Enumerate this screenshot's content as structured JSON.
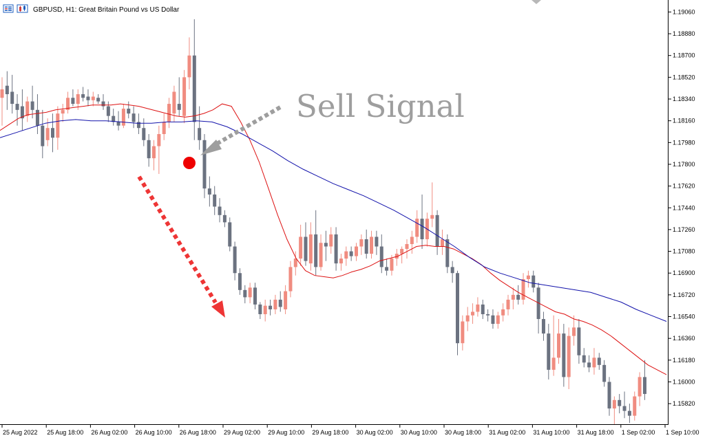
{
  "header": {
    "title": "GBPUSD, H1:  Great Britain Pound vs US Dollar",
    "icons": [
      "indicators-list-icon",
      "chart-type-icon"
    ]
  },
  "annotation": {
    "text": "Sell Signal",
    "text_color": "#9e9e9e",
    "marker_color": "#ee0000",
    "arrow_color": "#ee3535"
  },
  "colors": {
    "bull": "#f08c80",
    "bear": "#6b7280",
    "ma_fast": "#dd1111",
    "ma_slow": "#1111aa",
    "axis": "#000000"
  },
  "chart_data": {
    "type": "candlestick",
    "symbol": "GBPUSD",
    "timeframe": "H1",
    "ylim": [
      1.1565,
      1.19125
    ],
    "y_ticks": [
      "1.19060",
      "1.18880",
      "1.18700",
      "1.18520",
      "1.18340",
      "1.18160",
      "1.17980",
      "1.17800",
      "1.17620",
      "1.17440",
      "1.17260",
      "1.17080",
      "1.16900",
      "1.16720",
      "1.16540",
      "1.16360",
      "1.16180",
      "1.16000",
      "1.15820"
    ],
    "x_ticks": [
      "25 Aug 2022",
      "25 Aug 18:00",
      "26 Aug 02:00",
      "26 Aug 10:00",
      "26 Aug 18:00",
      "29 Aug 02:00",
      "29 Aug 10:00",
      "29 Aug 18:00",
      "30 Aug 02:00",
      "30 Aug 10:00",
      "30 Aug 18:00",
      "31 Aug 02:00",
      "31 Aug 10:00",
      "31 Aug 18:00",
      "1 Sep 02:00",
      "1 Sep 10:00"
    ],
    "candles": [
      {
        "o": 1.1835,
        "h": 1.1852,
        "l": 1.1812,
        "c": 1.1842
      },
      {
        "o": 1.1845,
        "h": 1.1857,
        "l": 1.1825,
        "c": 1.1838
      },
      {
        "o": 1.184,
        "h": 1.1854,
        "l": 1.1822,
        "c": 1.183
      },
      {
        "o": 1.183,
        "h": 1.1838,
        "l": 1.1812,
        "c": 1.1825
      },
      {
        "o": 1.1828,
        "h": 1.1842,
        "l": 1.1808,
        "c": 1.1818
      },
      {
        "o": 1.182,
        "h": 1.1836,
        "l": 1.1815,
        "c": 1.1832
      },
      {
        "o": 1.1832,
        "h": 1.1845,
        "l": 1.1818,
        "c": 1.1825
      },
      {
        "o": 1.1825,
        "h": 1.1838,
        "l": 1.1805,
        "c": 1.1812
      },
      {
        "o": 1.1812,
        "h": 1.1825,
        "l": 1.1785,
        "c": 1.1795
      },
      {
        "o": 1.18,
        "h": 1.1818,
        "l": 1.1795,
        "c": 1.181
      },
      {
        "o": 1.181,
        "h": 1.1822,
        "l": 1.179,
        "c": 1.1802
      },
      {
        "o": 1.1802,
        "h": 1.1828,
        "l": 1.1792,
        "c": 1.1822
      },
      {
        "o": 1.1822,
        "h": 1.183,
        "l": 1.1815,
        "c": 1.1825
      },
      {
        "o": 1.1825,
        "h": 1.184,
        "l": 1.1822,
        "c": 1.1835
      },
      {
        "o": 1.1835,
        "h": 1.1842,
        "l": 1.1828,
        "c": 1.183
      },
      {
        "o": 1.183,
        "h": 1.1842,
        "l": 1.1825,
        "c": 1.1838
      },
      {
        "o": 1.1838,
        "h": 1.1844,
        "l": 1.1832,
        "c": 1.1835
      },
      {
        "o": 1.1836,
        "h": 1.1842,
        "l": 1.1828,
        "c": 1.1833
      },
      {
        "o": 1.1833,
        "h": 1.184,
        "l": 1.1828,
        "c": 1.1836
      },
      {
        "o": 1.1835,
        "h": 1.1838,
        "l": 1.183,
        "c": 1.1832
      },
      {
        "o": 1.1832,
        "h": 1.1838,
        "l": 1.1825,
        "c": 1.1828
      },
      {
        "o": 1.1828,
        "h": 1.1832,
        "l": 1.1815,
        "c": 1.182
      },
      {
        "o": 1.182,
        "h": 1.1826,
        "l": 1.1812,
        "c": 1.1815
      },
      {
        "o": 1.1815,
        "h": 1.1824,
        "l": 1.1808,
        "c": 1.1812
      },
      {
        "o": 1.1812,
        "h": 1.183,
        "l": 1.181,
        "c": 1.1826
      },
      {
        "o": 1.1826,
        "h": 1.1832,
        "l": 1.1818,
        "c": 1.1822
      },
      {
        "o": 1.1822,
        "h": 1.1828,
        "l": 1.181,
        "c": 1.1815
      },
      {
        "o": 1.1815,
        "h": 1.1822,
        "l": 1.1805,
        "c": 1.181
      },
      {
        "o": 1.181,
        "h": 1.1818,
        "l": 1.1795,
        "c": 1.18
      },
      {
        "o": 1.18,
        "h": 1.1805,
        "l": 1.1778,
        "c": 1.1785
      },
      {
        "o": 1.1785,
        "h": 1.18,
        "l": 1.1775,
        "c": 1.1795
      },
      {
        "o": 1.1795,
        "h": 1.1812,
        "l": 1.1772,
        "c": 1.1805
      },
      {
        "o": 1.1805,
        "h": 1.1822,
        "l": 1.18,
        "c": 1.1815
      },
      {
        "o": 1.1815,
        "h": 1.1835,
        "l": 1.181,
        "c": 1.183
      },
      {
        "o": 1.1822,
        "h": 1.1845,
        "l": 1.1815,
        "c": 1.184
      },
      {
        "o": 1.183,
        "h": 1.1852,
        "l": 1.182,
        "c": 1.1825
      },
      {
        "o": 1.182,
        "h": 1.1858,
        "l": 1.1814,
        "c": 1.1852
      },
      {
        "o": 1.1852,
        "h": 1.1885,
        "l": 1.1842,
        "c": 1.187
      },
      {
        "o": 1.187,
        "h": 1.19,
        "l": 1.18,
        "c": 1.1815
      },
      {
        "o": 1.181,
        "h": 1.1828,
        "l": 1.1792,
        "c": 1.18
      },
      {
        "o": 1.18,
        "h": 1.1805,
        "l": 1.1752,
        "c": 1.176
      },
      {
        "o": 1.176,
        "h": 1.177,
        "l": 1.1745,
        "c": 1.1755
      },
      {
        "o": 1.1755,
        "h": 1.1762,
        "l": 1.1738,
        "c": 1.1745
      },
      {
        "o": 1.1745,
        "h": 1.1752,
        "l": 1.1732,
        "c": 1.1738
      },
      {
        "o": 1.1738,
        "h": 1.1742,
        "l": 1.1728,
        "c": 1.1732
      },
      {
        "o": 1.1732,
        "h": 1.1736,
        "l": 1.1708,
        "c": 1.1712
      },
      {
        "o": 1.1712,
        "h": 1.1716,
        "l": 1.1684,
        "c": 1.169
      },
      {
        "o": 1.169,
        "h": 1.1694,
        "l": 1.1672,
        "c": 1.1676
      },
      {
        "o": 1.1676,
        "h": 1.168,
        "l": 1.1665,
        "c": 1.167
      },
      {
        "o": 1.167,
        "h": 1.1682,
        "l": 1.1665,
        "c": 1.1678
      },
      {
        "o": 1.1678,
        "h": 1.1682,
        "l": 1.166,
        "c": 1.1664
      },
      {
        "o": 1.1664,
        "h": 1.1666,
        "l": 1.1652,
        "c": 1.1656
      },
      {
        "o": 1.1656,
        "h": 1.1668,
        "l": 1.165,
        "c": 1.1663
      },
      {
        "o": 1.1663,
        "h": 1.1668,
        "l": 1.1655,
        "c": 1.166
      },
      {
        "o": 1.166,
        "h": 1.1672,
        "l": 1.1656,
        "c": 1.1668
      },
      {
        "o": 1.1668,
        "h": 1.1675,
        "l": 1.1658,
        "c": 1.1662
      },
      {
        "o": 1.166,
        "h": 1.168,
        "l": 1.1656,
        "c": 1.1675
      },
      {
        "o": 1.1675,
        "h": 1.17,
        "l": 1.167,
        "c": 1.1695
      },
      {
        "o": 1.1695,
        "h": 1.1708,
        "l": 1.1688,
        "c": 1.1702
      },
      {
        "o": 1.1702,
        "h": 1.173,
        "l": 1.1696,
        "c": 1.172
      },
      {
        "o": 1.172,
        "h": 1.1732,
        "l": 1.1696,
        "c": 1.17
      },
      {
        "o": 1.1698,
        "h": 1.1732,
        "l": 1.1692,
        "c": 1.1722
      },
      {
        "o": 1.1722,
        "h": 1.1742,
        "l": 1.1688,
        "c": 1.1695
      },
      {
        "o": 1.1695,
        "h": 1.1722,
        "l": 1.1692,
        "c": 1.1715
      },
      {
        "o": 1.1715,
        "h": 1.1725,
        "l": 1.17,
        "c": 1.1712
      },
      {
        "o": 1.1712,
        "h": 1.1728,
        "l": 1.1706,
        "c": 1.1722
      },
      {
        "o": 1.1722,
        "h": 1.1728,
        "l": 1.1692,
        "c": 1.1698
      },
      {
        "o": 1.1698,
        "h": 1.1706,
        "l": 1.1692,
        "c": 1.1702
      },
      {
        "o": 1.1702,
        "h": 1.1712,
        "l": 1.1696,
        "c": 1.1708
      },
      {
        "o": 1.1708,
        "h": 1.1712,
        "l": 1.17,
        "c": 1.1704
      },
      {
        "o": 1.1704,
        "h": 1.1715,
        "l": 1.17,
        "c": 1.1712
      },
      {
        "o": 1.1712,
        "h": 1.1722,
        "l": 1.1705,
        "c": 1.1718
      },
      {
        "o": 1.1718,
        "h": 1.1726,
        "l": 1.1702,
        "c": 1.1706
      },
      {
        "o": 1.1706,
        "h": 1.1725,
        "l": 1.1702,
        "c": 1.172
      },
      {
        "o": 1.172,
        "h": 1.1725,
        "l": 1.1705,
        "c": 1.1712
      },
      {
        "o": 1.1712,
        "h": 1.1722,
        "l": 1.169,
        "c": 1.1695
      },
      {
        "o": 1.1695,
        "h": 1.1702,
        "l": 1.1688,
        "c": 1.1692
      },
      {
        "o": 1.1692,
        "h": 1.1705,
        "l": 1.1688,
        "c": 1.1702
      },
      {
        "o": 1.1702,
        "h": 1.171,
        "l": 1.1696,
        "c": 1.1706
      },
      {
        "o": 1.1706,
        "h": 1.1712,
        "l": 1.1698,
        "c": 1.171
      },
      {
        "o": 1.171,
        "h": 1.1718,
        "l": 1.1702,
        "c": 1.1714
      },
      {
        "o": 1.1714,
        "h": 1.1725,
        "l": 1.1706,
        "c": 1.172
      },
      {
        "o": 1.172,
        "h": 1.1742,
        "l": 1.1715,
        "c": 1.1735
      },
      {
        "o": 1.1735,
        "h": 1.1755,
        "l": 1.171,
        "c": 1.1718
      },
      {
        "o": 1.1718,
        "h": 1.174,
        "l": 1.1712,
        "c": 1.1735
      },
      {
        "o": 1.1735,
        "h": 1.1765,
        "l": 1.1728,
        "c": 1.1738
      },
      {
        "o": 1.1738,
        "h": 1.1742,
        "l": 1.1705,
        "c": 1.1712
      },
      {
        "o": 1.1712,
        "h": 1.1726,
        "l": 1.1705,
        "c": 1.1718
      },
      {
        "o": 1.1718,
        "h": 1.1722,
        "l": 1.169,
        "c": 1.1695
      },
      {
        "o": 1.1695,
        "h": 1.17,
        "l": 1.1682,
        "c": 1.169
      },
      {
        "o": 1.169,
        "h": 1.1692,
        "l": 1.1622,
        "c": 1.1632
      },
      {
        "o": 1.1632,
        "h": 1.1655,
        "l": 1.1626,
        "c": 1.165
      },
      {
        "o": 1.165,
        "h": 1.1662,
        "l": 1.1642,
        "c": 1.1655
      },
      {
        "o": 1.1655,
        "h": 1.1665,
        "l": 1.1648,
        "c": 1.1658
      },
      {
        "o": 1.1658,
        "h": 1.167,
        "l": 1.1654,
        "c": 1.1664
      },
      {
        "o": 1.1664,
        "h": 1.1668,
        "l": 1.1652,
        "c": 1.1656
      },
      {
        "o": 1.1656,
        "h": 1.166,
        "l": 1.165,
        "c": 1.1655
      },
      {
        "o": 1.1655,
        "h": 1.166,
        "l": 1.1644,
        "c": 1.1648
      },
      {
        "o": 1.1648,
        "h": 1.1658,
        "l": 1.1644,
        "c": 1.1655
      },
      {
        "o": 1.1655,
        "h": 1.1665,
        "l": 1.165,
        "c": 1.166
      },
      {
        "o": 1.166,
        "h": 1.1672,
        "l": 1.1655,
        "c": 1.1668
      },
      {
        "o": 1.1668,
        "h": 1.1678,
        "l": 1.166,
        "c": 1.1672
      },
      {
        "o": 1.1672,
        "h": 1.168,
        "l": 1.1664,
        "c": 1.1668
      },
      {
        "o": 1.1668,
        "h": 1.169,
        "l": 1.1664,
        "c": 1.1685
      },
      {
        "o": 1.1685,
        "h": 1.1692,
        "l": 1.1678,
        "c": 1.1688
      },
      {
        "o": 1.1688,
        "h": 1.1692,
        "l": 1.1674,
        "c": 1.1678
      },
      {
        "o": 1.1678,
        "h": 1.1682,
        "l": 1.164,
        "c": 1.1652
      },
      {
        "o": 1.1652,
        "h": 1.1658,
        "l": 1.1634,
        "c": 1.164
      },
      {
        "o": 1.164,
        "h": 1.1648,
        "l": 1.1602,
        "c": 1.161
      },
      {
        "o": 1.161,
        "h": 1.1655,
        "l": 1.1605,
        "c": 1.162
      },
      {
        "o": 1.162,
        "h": 1.1652,
        "l": 1.1615,
        "c": 1.164
      },
      {
        "o": 1.164,
        "h": 1.1648,
        "l": 1.1596,
        "c": 1.1604
      },
      {
        "o": 1.1604,
        "h": 1.1645,
        "l": 1.1594,
        "c": 1.1638
      },
      {
        "o": 1.1638,
        "h": 1.1655,
        "l": 1.163,
        "c": 1.1645
      },
      {
        "o": 1.1645,
        "h": 1.1652,
        "l": 1.1615,
        "c": 1.1622
      },
      {
        "o": 1.1622,
        "h": 1.1628,
        "l": 1.1612,
        "c": 1.1616
      },
      {
        "o": 1.1616,
        "h": 1.1622,
        "l": 1.1608,
        "c": 1.1612
      },
      {
        "o": 1.1612,
        "h": 1.1628,
        "l": 1.1606,
        "c": 1.162
      },
      {
        "o": 1.162,
        "h": 1.1624,
        "l": 1.161,
        "c": 1.1614
      },
      {
        "o": 1.1614,
        "h": 1.1618,
        "l": 1.1596,
        "c": 1.16
      },
      {
        "o": 1.16,
        "h": 1.1604,
        "l": 1.1572,
        "c": 1.1578
      },
      {
        "o": 1.1578,
        "h": 1.1588,
        "l": 1.1565,
        "c": 1.1585
      },
      {
        "o": 1.1585,
        "h": 1.159,
        "l": 1.1574,
        "c": 1.158
      },
      {
        "o": 1.158,
        "h": 1.1592,
        "l": 1.157,
        "c": 1.1576
      },
      {
        "o": 1.1576,
        "h": 1.1582,
        "l": 1.1566,
        "c": 1.1572
      },
      {
        "o": 1.1572,
        "h": 1.1592,
        "l": 1.1568,
        "c": 1.1588
      },
      {
        "o": 1.1588,
        "h": 1.1608,
        "l": 1.158,
        "c": 1.1604
      },
      {
        "o": 1.1604,
        "h": 1.1618,
        "l": 1.1585,
        "c": 1.159
      }
    ],
    "series": [
      {
        "name": "",
        "color": "#dd1111",
        "values": [
          1.1808,
          1.1813,
          1.1818,
          1.1821,
          1.1822,
          1.1823,
          1.1825,
          1.1826,
          1.1827,
          1.1828,
          1.1829,
          1.1829,
          1.1829,
          1.183,
          1.1829,
          1.1828,
          1.1826,
          1.1824,
          1.1822,
          1.182,
          1.1819,
          1.182,
          1.1822,
          1.1825,
          1.183,
          1.1828,
          1.1815,
          1.18,
          1.1782,
          1.176,
          1.1738,
          1.1718,
          1.1702,
          1.1692,
          1.1688,
          1.1687,
          1.1686,
          1.1688,
          1.1691,
          1.1693,
          1.1696,
          1.17,
          1.1702,
          1.1704,
          1.1708,
          1.1712,
          1.1713,
          1.1712,
          1.1712,
          1.171,
          1.1706,
          1.1702,
          1.1697,
          1.169,
          1.1684,
          1.1679,
          1.1674,
          1.167,
          1.1666,
          1.1662,
          1.1658,
          1.1656,
          1.1652,
          1.165,
          1.1647,
          1.1643,
          1.1638,
          1.1632,
          1.1626,
          1.162,
          1.1614,
          1.161,
          1.1606
        ]
      },
      {
        "name": "",
        "color": "#1111aa",
        "values": [
          1.1802,
          1.1806,
          1.181,
          1.1814,
          1.1816,
          1.1817,
          1.1816,
          1.1816,
          1.1815,
          1.1814,
          1.1814,
          1.1815,
          1.1815,
          1.1816,
          1.1815,
          1.1811,
          1.1805,
          1.1798,
          1.1791,
          1.1783,
          1.1776,
          1.177,
          1.1764,
          1.1759,
          1.1754,
          1.1748,
          1.1742,
          1.1735,
          1.1728,
          1.172,
          1.1712,
          1.1703,
          1.1695,
          1.169,
          1.1686,
          1.1682,
          1.168,
          1.1678,
          1.1676,
          1.1674,
          1.167,
          1.1666,
          1.166,
          1.1655,
          1.165
        ]
      }
    ]
  }
}
